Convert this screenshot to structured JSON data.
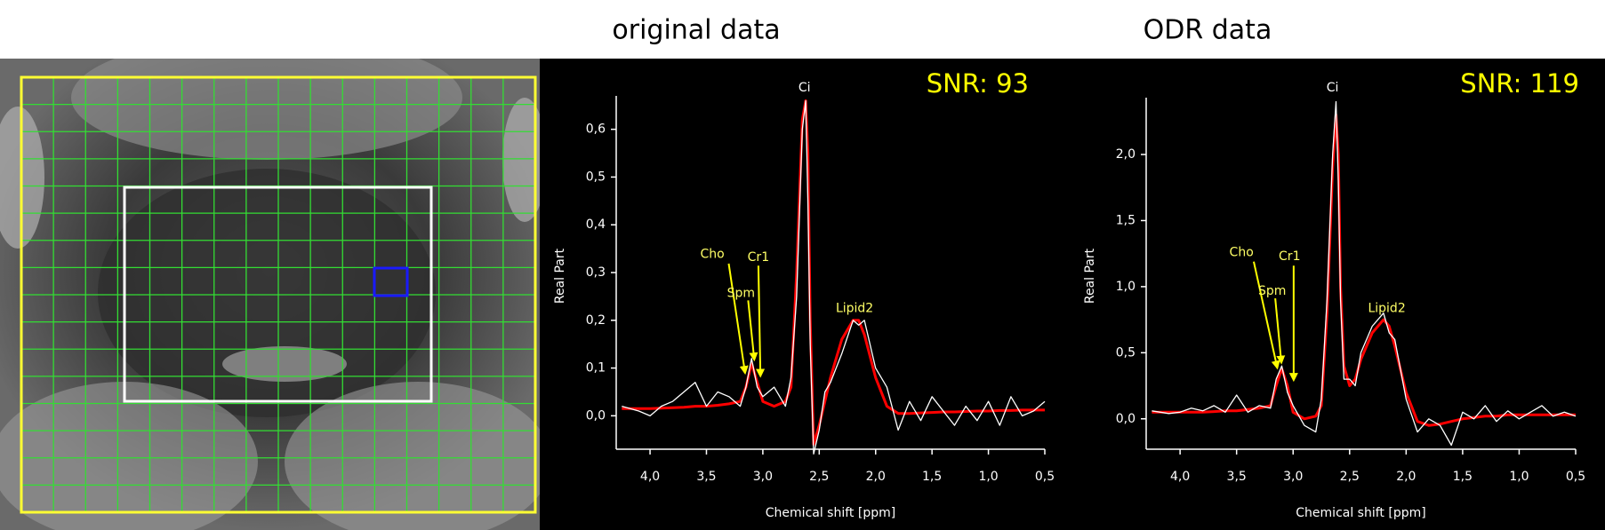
{
  "chart_data": [
    {
      "type": "line",
      "title": "original data",
      "snr_label": "SNR: 93",
      "xlabel": "Chemical shift [ppm]",
      "ylabel": "Real Part",
      "x": [
        4.25,
        4.1,
        4.0,
        3.9,
        3.8,
        3.7,
        3.6,
        3.5,
        3.4,
        3.3,
        3.2,
        3.15,
        3.1,
        3.05,
        3.0,
        2.9,
        2.8,
        2.75,
        2.7,
        2.65,
        2.62,
        2.6,
        2.58,
        2.55,
        2.5,
        2.45,
        2.4,
        2.3,
        2.2,
        2.15,
        2.1,
        2.0,
        1.9,
        1.8,
        1.7,
        1.6,
        1.5,
        1.4,
        1.3,
        1.2,
        1.1,
        1.0,
        0.9,
        0.8,
        0.7,
        0.6,
        0.5
      ],
      "series": [
        {
          "color": "#ff0000",
          "values": [
            0.015,
            0.015,
            0.015,
            0.016,
            0.017,
            0.018,
            0.02,
            0.02,
            0.022,
            0.025,
            0.03,
            0.06,
            0.11,
            0.07,
            0.03,
            0.02,
            0.03,
            0.06,
            0.3,
            0.62,
            0.66,
            0.55,
            0.2,
            -0.06,
            -0.02,
            0.03,
            0.08,
            0.16,
            0.2,
            0.2,
            0.17,
            0.08,
            0.02,
            0.005,
            0.005,
            0.006,
            0.007,
            0.008,
            0.008,
            0.009,
            0.01,
            0.01,
            0.011,
            0.011,
            0.012,
            0.012,
            0.012
          ]
        },
        {
          "color": "#ffffff",
          "values": [
            0.02,
            0.01,
            0.0,
            0.02,
            0.03,
            0.05,
            0.07,
            0.02,
            0.05,
            0.04,
            0.02,
            0.06,
            0.12,
            0.06,
            0.04,
            0.06,
            0.02,
            0.08,
            0.25,
            0.6,
            0.66,
            0.45,
            0.15,
            -0.08,
            -0.03,
            0.05,
            0.07,
            0.13,
            0.2,
            0.19,
            0.2,
            0.1,
            0.06,
            -0.03,
            0.03,
            -0.01,
            0.04,
            0.01,
            -0.02,
            0.02,
            -0.01,
            0.03,
            -0.02,
            0.04,
            0.0,
            0.01,
            0.03
          ]
        }
      ],
      "annotations": [
        "Ci",
        "Cho",
        "Spm",
        "Cr1",
        "Lipid2"
      ],
      "xlim": [
        4.3,
        0.5
      ],
      "ylim": [
        -0.07,
        0.67
      ],
      "xticks": [
        {
          "value": 4.0,
          "label": "4,0"
        },
        {
          "value": 3.5,
          "label": "3,5"
        },
        {
          "value": 3.0,
          "label": "3,0"
        },
        {
          "value": 2.5,
          "label": "2,5"
        },
        {
          "value": 2.0,
          "label": "2,0"
        },
        {
          "value": 1.5,
          "label": "1,5"
        },
        {
          "value": 1.0,
          "label": "1,0"
        },
        {
          "value": 0.5,
          "label": "0,5"
        }
      ],
      "yticks": [
        {
          "value": 0.0,
          "label": "0,0"
        },
        {
          "value": 0.1,
          "label": "0,1"
        },
        {
          "value": 0.2,
          "label": "0,2"
        },
        {
          "value": 0.3,
          "label": "0,3"
        },
        {
          "value": 0.4,
          "label": "0,4"
        },
        {
          "value": 0.5,
          "label": "0,5"
        },
        {
          "value": 0.6,
          "label": "0,6"
        }
      ]
    },
    {
      "type": "line",
      "title": "ODR data",
      "snr_label": "SNR: 119",
      "xlabel": "Chemical shift [ppm]",
      "ylabel": "Real Part",
      "x": [
        4.25,
        4.1,
        4.0,
        3.9,
        3.8,
        3.7,
        3.6,
        3.5,
        3.4,
        3.3,
        3.2,
        3.15,
        3.1,
        3.05,
        3.0,
        2.9,
        2.8,
        2.75,
        2.7,
        2.65,
        2.62,
        2.6,
        2.58,
        2.55,
        2.5,
        2.45,
        2.4,
        2.3,
        2.2,
        2.15,
        2.1,
        2.0,
        1.9,
        1.8,
        1.7,
        1.6,
        1.5,
        1.4,
        1.3,
        1.2,
        1.1,
        1.0,
        0.9,
        0.8,
        0.7,
        0.6,
        0.5
      ],
      "series": [
        {
          "color": "#ff0000",
          "values": [
            0.05,
            0.05,
            0.05,
            0.05,
            0.05,
            0.055,
            0.06,
            0.06,
            0.07,
            0.08,
            0.1,
            0.25,
            0.38,
            0.25,
            0.05,
            0.0,
            0.02,
            0.1,
            0.8,
            1.9,
            2.3,
            2.0,
            1.0,
            0.4,
            0.25,
            0.3,
            0.45,
            0.65,
            0.75,
            0.7,
            0.55,
            0.2,
            -0.02,
            -0.05,
            -0.04,
            -0.02,
            0.0,
            0.01,
            0.02,
            0.02,
            0.03,
            0.03,
            0.03,
            0.03,
            0.03,
            0.03,
            0.03
          ]
        },
        {
          "color": "#ffffff",
          "values": [
            0.06,
            0.04,
            0.05,
            0.08,
            0.06,
            0.1,
            0.05,
            0.18,
            0.05,
            0.1,
            0.08,
            0.3,
            0.4,
            0.2,
            0.1,
            -0.05,
            -0.1,
            0.15,
            0.9,
            2.0,
            2.4,
            1.8,
            0.9,
            0.3,
            0.3,
            0.25,
            0.5,
            0.7,
            0.8,
            0.65,
            0.6,
            0.15,
            -0.1,
            0.0,
            -0.05,
            -0.2,
            0.05,
            0.0,
            0.1,
            -0.02,
            0.06,
            0.0,
            0.05,
            0.1,
            0.02,
            0.05,
            0.02
          ]
        }
      ],
      "annotations": [
        "Ci",
        "Cho",
        "Spm",
        "Cr1",
        "Lipid2"
      ],
      "xlim": [
        4.3,
        0.5
      ],
      "ylim": [
        -0.23,
        2.43
      ],
      "xticks": [
        {
          "value": 4.0,
          "label": "4,0"
        },
        {
          "value": 3.5,
          "label": "3,5"
        },
        {
          "value": 3.0,
          "label": "3,0"
        },
        {
          "value": 2.5,
          "label": "2,5"
        },
        {
          "value": 2.0,
          "label": "2,0"
        },
        {
          "value": 1.5,
          "label": "1,5"
        },
        {
          "value": 1.0,
          "label": "1,0"
        },
        {
          "value": 0.5,
          "label": "0,5"
        }
      ],
      "yticks": [
        {
          "value": 0.0,
          "label": "0,0"
        },
        {
          "value": 0.5,
          "label": "0,5"
        },
        {
          "value": 1.0,
          "label": "1,0"
        },
        {
          "value": 1.5,
          "label": "1,5"
        },
        {
          "value": 2.0,
          "label": "2,0"
        }
      ]
    }
  ]
}
